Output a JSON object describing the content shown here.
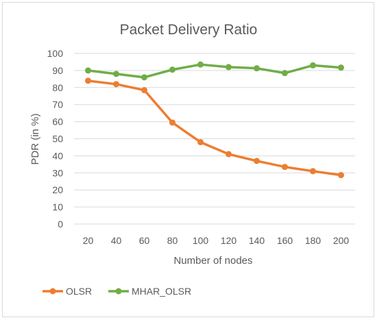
{
  "chart_data": {
    "type": "line",
    "title": "Packet Delivery Ratio",
    "xlabel": "Number of nodes",
    "ylabel": "PDR (in %)",
    "categories": [
      "20",
      "40",
      "60",
      "80",
      "100",
      "120",
      "140",
      "160",
      "180",
      "200"
    ],
    "ylim": [
      0,
      100
    ],
    "yticks": [
      "0",
      "10",
      "20",
      "30",
      "40",
      "50",
      "60",
      "70",
      "80",
      "90",
      "100"
    ],
    "grid": true,
    "legend_position": "bottom-left",
    "series": [
      {
        "name": "OLSR",
        "color": "#ed7d31",
        "values": [
          84,
          82,
          78.5,
          59.5,
          48,
          41,
          37,
          33.5,
          31,
          28.7
        ]
      },
      {
        "name": "MHAR_OLSR",
        "color": "#70ad47",
        "values": [
          90,
          88,
          86,
          90.5,
          93.5,
          92,
          91.3,
          88.5,
          93,
          91.7
        ]
      }
    ]
  }
}
